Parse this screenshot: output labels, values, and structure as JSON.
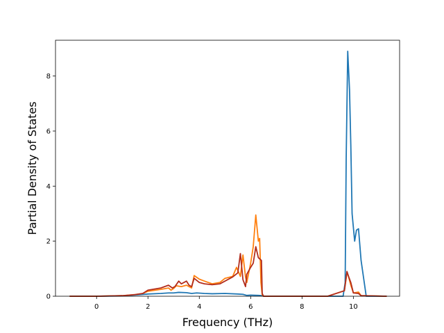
{
  "chart_data": {
    "type": "line",
    "title": "",
    "xlabel": "Frequency (THz)",
    "ylabel": "Partial Density of States",
    "xlim": [
      -1.6,
      11.8
    ],
    "ylim": [
      0,
      9.3
    ],
    "xticks": [
      0,
      2,
      4,
      6,
      8,
      10
    ],
    "yticks": [
      0,
      2,
      4,
      6,
      8
    ],
    "xtick_labels": [
      "0",
      "2",
      "4",
      "6",
      "8",
      "10"
    ],
    "ytick_labels": [
      "0",
      "2",
      "4",
      "6",
      "8"
    ],
    "grid": false,
    "series": [
      {
        "color": "#1f77b4",
        "x": [
          -1.05,
          0,
          1.0,
          1.6,
          2.0,
          2.5,
          2.8,
          3.0,
          3.2,
          3.5,
          3.7,
          3.9,
          4.2,
          4.5,
          5.0,
          5.5,
          5.7,
          5.85,
          6.0,
          6.3,
          6.45,
          6.5,
          7.0,
          8.0,
          9.0,
          9.6,
          9.68,
          9.72,
          9.78,
          9.85,
          9.9,
          9.95,
          10.05,
          10.12,
          10.2,
          10.3,
          10.5,
          11.3
        ],
        "y": [
          0,
          0,
          0.01,
          0.05,
          0.08,
          0.1,
          0.12,
          0.12,
          0.14,
          0.13,
          0.1,
          0.12,
          0.1,
          0.09,
          0.1,
          0.08,
          0.07,
          0.03,
          0.04,
          0.03,
          0.02,
          0,
          0,
          0,
          0,
          0,
          0.5,
          5.0,
          8.9,
          7.5,
          5.5,
          3.0,
          2.0,
          2.4,
          2.45,
          1.3,
          0,
          0
        ]
      },
      {
        "color": "#ff7f0e",
        "x": [
          -1.05,
          0,
          1.0,
          1.5,
          1.8,
          2.0,
          2.5,
          2.8,
          2.9,
          3.0,
          3.1,
          3.3,
          3.5,
          3.6,
          3.7,
          3.8,
          4.0,
          4.2,
          4.5,
          4.8,
          5.0,
          5.3,
          5.45,
          5.6,
          5.7,
          5.8,
          5.85,
          6.0,
          6.1,
          6.2,
          6.3,
          6.35,
          6.4,
          6.45,
          6.5,
          7.0,
          8.0,
          9.0,
          9.65,
          9.75,
          9.8,
          9.9,
          10.0,
          10.2,
          10.3,
          11.3
        ],
        "y": [
          0,
          0,
          0.02,
          0.06,
          0.1,
          0.18,
          0.25,
          0.3,
          0.22,
          0.28,
          0.38,
          0.35,
          0.4,
          0.35,
          0.3,
          0.75,
          0.62,
          0.55,
          0.45,
          0.5,
          0.65,
          0.72,
          1.05,
          0.72,
          1.5,
          0.7,
          0.5,
          1.2,
          1.8,
          2.95,
          2.0,
          2.1,
          0.5,
          0.05,
          0,
          0,
          0,
          0,
          0.2,
          0.85,
          0.75,
          0.4,
          0.12,
          0.15,
          0.02,
          0
        ]
      },
      {
        "color": "#b22c1c",
        "x": [
          -1.05,
          0,
          1.0,
          1.5,
          1.8,
          2.0,
          2.5,
          2.8,
          2.95,
          3.05,
          3.2,
          3.3,
          3.5,
          3.6,
          3.7,
          3.8,
          4.0,
          4.2,
          4.5,
          4.8,
          5.0,
          5.3,
          5.5,
          5.6,
          5.7,
          5.8,
          5.85,
          6.0,
          6.1,
          6.2,
          6.3,
          6.42,
          6.45,
          6.5,
          7.0,
          8.0,
          9.0,
          9.65,
          9.75,
          9.82,
          9.9,
          10.0,
          10.2,
          10.3,
          11.3
        ],
        "y": [
          0,
          0,
          0.02,
          0.06,
          0.1,
          0.22,
          0.3,
          0.4,
          0.3,
          0.35,
          0.55,
          0.45,
          0.55,
          0.4,
          0.35,
          0.65,
          0.5,
          0.45,
          0.42,
          0.45,
          0.55,
          0.7,
          0.85,
          1.55,
          0.6,
          0.35,
          0.8,
          1.05,
          1.2,
          1.8,
          1.4,
          1.3,
          0.1,
          0,
          0,
          0,
          0,
          0.2,
          0.9,
          0.7,
          0.5,
          0.12,
          0.1,
          0.02,
          0
        ]
      }
    ]
  }
}
